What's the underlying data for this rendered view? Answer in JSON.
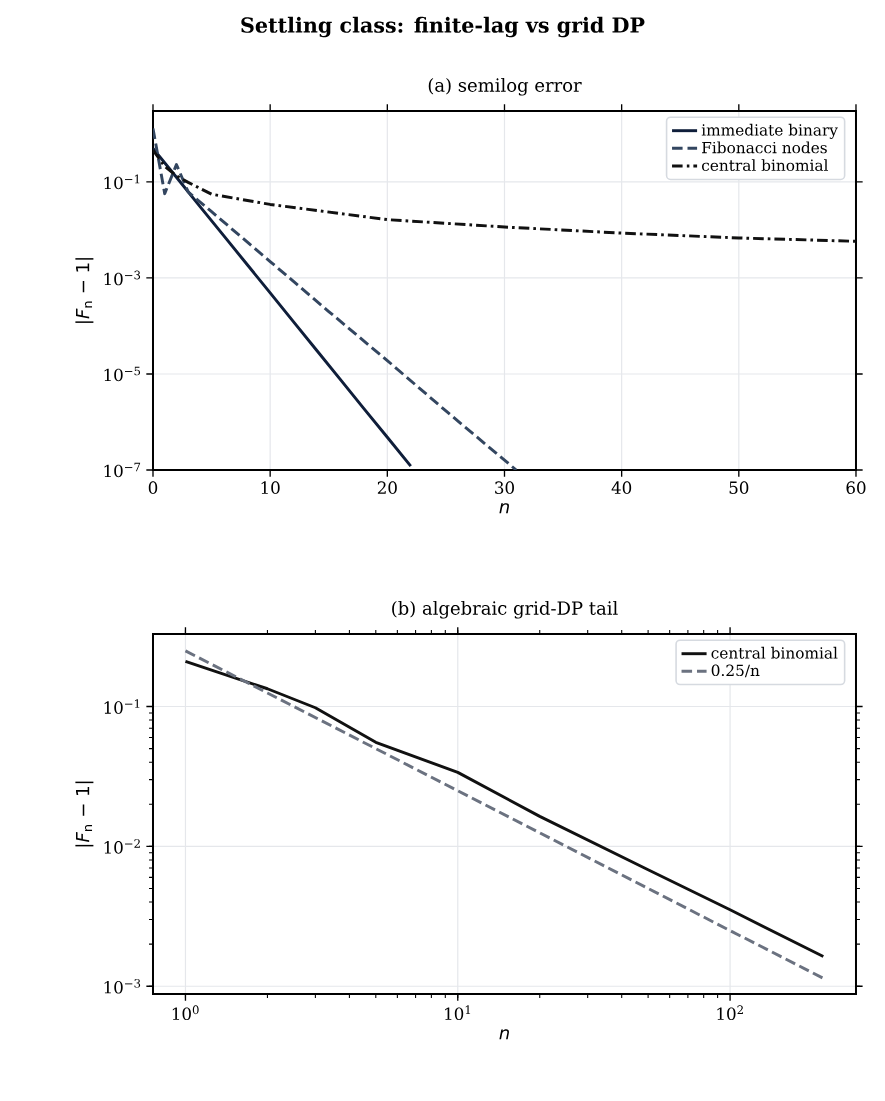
{
  "chart_data": [
    {
      "type": "line",
      "title": "Settling class: finite-lag vs grid DP",
      "subtitle": "(a) semilog error",
      "xlabel": "n",
      "ylabel": "|*F*$_{n}$ − 1|",
      "log": "y",
      "grid": true,
      "legend": "top right",
      "xlim": [
        0,
        60
      ],
      "xticks": [
        0,
        10,
        20,
        30,
        40,
        50,
        60
      ],
      "ylim": [
        1e-07,
        3
      ],
      "yticks": [
        {
          "value": 1e-07,
          "label": "10$^{−7}$"
        },
        {
          "value": 1e-05,
          "label": "10$^{−5}$"
        },
        {
          "value": 0.001,
          "label": "10$^{−3}$"
        },
        {
          "value": 0.1,
          "label": "10$^{−1}$"
        }
      ],
      "series": [
        {
          "name": "immediate binary",
          "color": "#0f1e3a",
          "line_style": "solid",
          "x": [
            0,
            2,
            4,
            6,
            8,
            10,
            12,
            14,
            16,
            18,
            20,
            22
          ],
          "values": [
            0.5,
            0.125,
            0.031,
            0.0078,
            0.00195,
            0.00049,
            0.000122,
            3.05e-05,
            7.6e-06,
            1.9e-06,
            4.8e-07,
            1.2e-07
          ]
        },
        {
          "name": "Fibonacci nodes",
          "color": "#334660",
          "line_style": "dashed",
          "x": [
            0,
            1,
            2,
            3,
            4,
            5,
            10,
            15,
            20,
            25,
            31
          ],
          "values": [
            1.3,
            0.057,
            0.23,
            0.062,
            0.0385,
            0.024,
            0.0022,
            0.0002,
            1.9e-05,
            1.7e-06,
            1e-07
          ]
        },
        {
          "name": "central binomial",
          "color": "#111111",
          "line_style": "dashdot",
          "x": [
            0,
            1,
            2,
            3,
            5,
            10,
            20,
            30,
            40,
            50,
            60
          ],
          "values": [
            0.46,
            0.21,
            0.134,
            0.098,
            0.0555,
            0.034,
            0.0164,
            0.0115,
            0.0086,
            0.0068,
            0.0058
          ]
        }
      ]
    },
    {
      "type": "line",
      "title": "(b) algebraic grid-DP tail",
      "xlabel": "n",
      "ylabel": "|*F*$_{n}$ − 1|",
      "log": "xy",
      "grid": true,
      "legend": "top right",
      "xlim": [
        0.76,
        290
      ],
      "xticks": [
        {
          "value": 1,
          "label": "10$^{0}$"
        },
        {
          "value": 10,
          "label": "10$^{1}$"
        },
        {
          "value": 100,
          "label": "10$^{2}$"
        }
      ],
      "ylim": [
        0.00088,
        0.33
      ],
      "yticks": [
        {
          "value": 0.001,
          "label": "10$^{−3}$"
        },
        {
          "value": 0.01,
          "label": "10$^{−2}$"
        },
        {
          "value": 0.1,
          "label": "10$^{−1}$"
        }
      ],
      "series": [
        {
          "name": "central binomial",
          "color": "#111111",
          "line_style": "solid",
          "x": [
            1,
            2,
            3,
            5,
            10,
            20,
            50,
            100,
            220
          ],
          "values": [
            0.21,
            0.134,
            0.098,
            0.0555,
            0.0338,
            0.0164,
            0.0068,
            0.00352,
            0.00163
          ]
        },
        {
          "name": "0.25/n",
          "color": "#6b7280",
          "line_style": "dashed",
          "x": [
            1,
            2,
            5,
            10,
            20,
            50,
            100,
            220
          ],
          "values": [
            0.25,
            0.125,
            0.05,
            0.025,
            0.0125,
            0.005,
            0.0025,
            0.00114
          ]
        }
      ]
    }
  ]
}
